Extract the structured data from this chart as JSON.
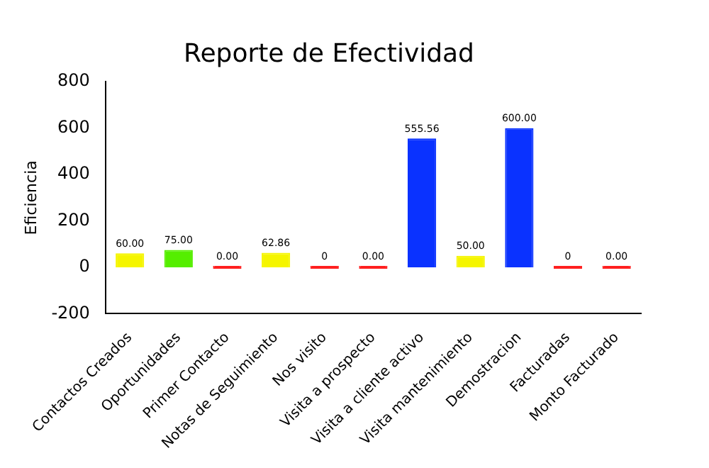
{
  "chart_data": {
    "type": "bar",
    "title": "Reporte de Efectividad",
    "ylabel": "Eficiencia",
    "categories": [
      "Contactos Creados",
      "Oportunidades",
      "Primer Contacto",
      "Notas de Seguimiento",
      "Nos visito",
      "Visita a prospecto",
      "Visita a cliente activo",
      "Visita mantenimiento",
      "Demostracion",
      "Facturadas",
      "Monto Facturado"
    ],
    "values": [
      60,
      75,
      0,
      62.86,
      0,
      0,
      555.56,
      50,
      600,
      0,
      0
    ],
    "value_labels": [
      "60.00",
      "75.00",
      "0.00",
      "62.86",
      "0",
      "0.00",
      "555.56",
      "50.00",
      "600.00",
      "0",
      "0.00"
    ],
    "colors": [
      "#f5f500",
      "#55ee00",
      "#ff2020",
      "#f5f500",
      "#ff2020",
      "#ff2020",
      "#0a32ff",
      "#f5f500",
      "#0a32ff",
      "#ff2020",
      "#ff2020"
    ],
    "ylim": [
      -200,
      800
    ],
    "yticks": [
      -200,
      0,
      200,
      400,
      600,
      800
    ],
    "grid": false,
    "legend": false
  }
}
